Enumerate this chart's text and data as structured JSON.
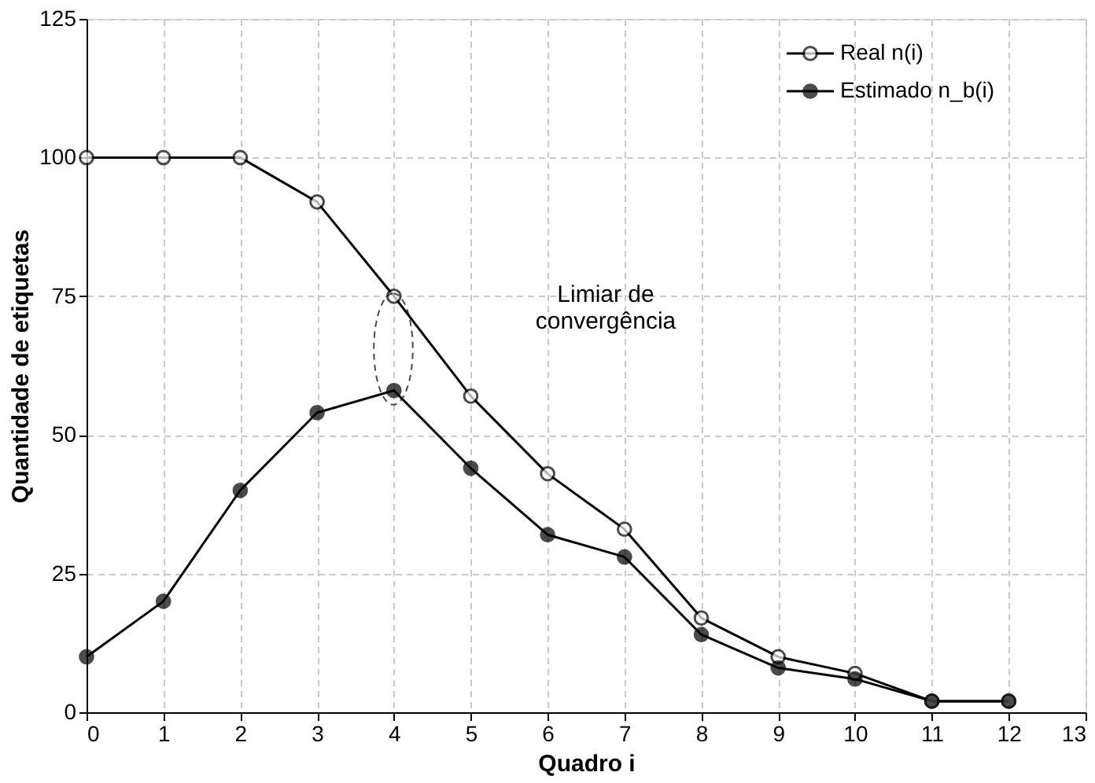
{
  "chart_data": {
    "type": "line",
    "xlabel": "Quadro i",
    "ylabel": "Quantidade de etiquetas",
    "x": [
      0,
      1,
      2,
      3,
      4,
      5,
      6,
      7,
      8,
      9,
      10,
      11,
      12
    ],
    "series": [
      {
        "name": "Real n(i)",
        "color": "#000000",
        "values": [
          100,
          100,
          100,
          92,
          75,
          57,
          43,
          33,
          17,
          10,
          7,
          2,
          2
        ]
      },
      {
        "name": "Estimado n_b(i)",
        "color": "#000000",
        "values": [
          10,
          20,
          40,
          54,
          58,
          44,
          32,
          28,
          14,
          8,
          6,
          2,
          2
        ]
      }
    ],
    "xlim": [
      0,
      13
    ],
    "xticks": [
      0,
      1,
      2,
      3,
      4,
      5,
      6,
      7,
      8,
      9,
      10,
      11,
      12,
      13
    ],
    "ylim": [
      0,
      125
    ],
    "yticks": [
      0,
      25,
      50,
      75,
      100,
      125
    ],
    "grid": true,
    "legend": "top right",
    "marker": "circle",
    "line_style": "solid",
    "annotations": [
      "Limiar de\nconvergência"
    ]
  }
}
